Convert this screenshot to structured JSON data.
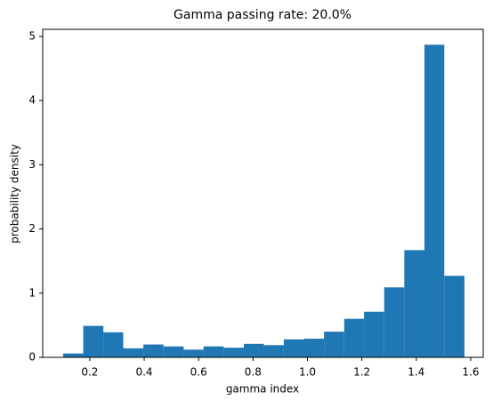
{
  "chart_data": {
    "type": "histogram",
    "title": "Gamma passing rate: 20.0%",
    "x_label": "gamma index",
    "y_label": "probability density",
    "bins": [
      0.102,
      0.176,
      0.25,
      0.323,
      0.397,
      0.471,
      0.545,
      0.618,
      0.692,
      0.766,
      0.84,
      0.913,
      0.987,
      1.061,
      1.135,
      1.208,
      1.282,
      1.356,
      1.43,
      1.503,
      1.577
    ],
    "values": [
      0.06,
      0.49,
      0.39,
      0.14,
      0.2,
      0.17,
      0.12,
      0.17,
      0.15,
      0.21,
      0.19,
      0.28,
      0.29,
      0.4,
      0.6,
      0.71,
      1.09,
      1.67,
      4.87,
      1.27
    ],
    "color": "#1f77b4",
    "xlim": [
      0.027,
      1.646
    ],
    "ylim": [
      0,
      5.11
    ],
    "xticks": [
      0.2,
      0.4,
      0.6,
      0.8,
      {
        "value": 1,
        "label": "1.0"
      },
      1.2,
      1.4,
      1.6
    ],
    "yticks": [
      0,
      1,
      2,
      3,
      4,
      5
    ],
    "grid": false
  }
}
